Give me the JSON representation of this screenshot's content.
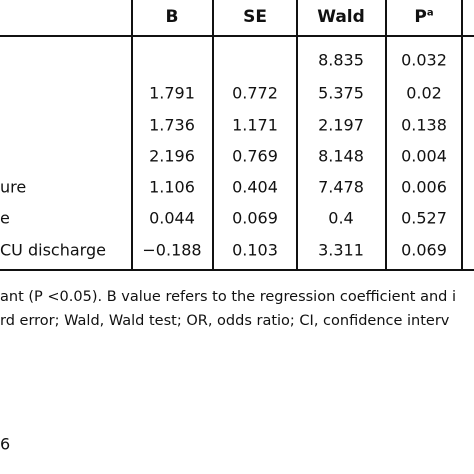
{
  "table": {
    "header": [
      "B",
      "SE",
      "Wald",
      "P"
    ],
    "header_sup": "a",
    "rows": [
      [
        null,
        null,
        null,
        "8.835",
        "0.032"
      ],
      [
        null,
        "1.791",
        "0.772",
        "5.375",
        "0.02"
      ],
      [
        null,
        "1.736",
        "1.171",
        "2.197",
        "0.138"
      ],
      [
        null,
        "2.196",
        "0.769",
        "8.148",
        "0.004"
      ],
      [
        "ure",
        "1.106",
        "0.404",
        "7.478",
        "0.006"
      ],
      [
        "e",
        "0.044",
        "0.069",
        "0.4",
        "0.527"
      ],
      [
        "CU discharge",
        "−0.188",
        "0.103",
        "3.311",
        "0.069"
      ]
    ]
  },
  "footnotes": [
    "ant (P <0.05). B value refers to the regression coefficient and i",
    "rd error; Wald, Wald test; OR, odds ratio; CI, confidence interv"
  ],
  "page_number": "6"
}
